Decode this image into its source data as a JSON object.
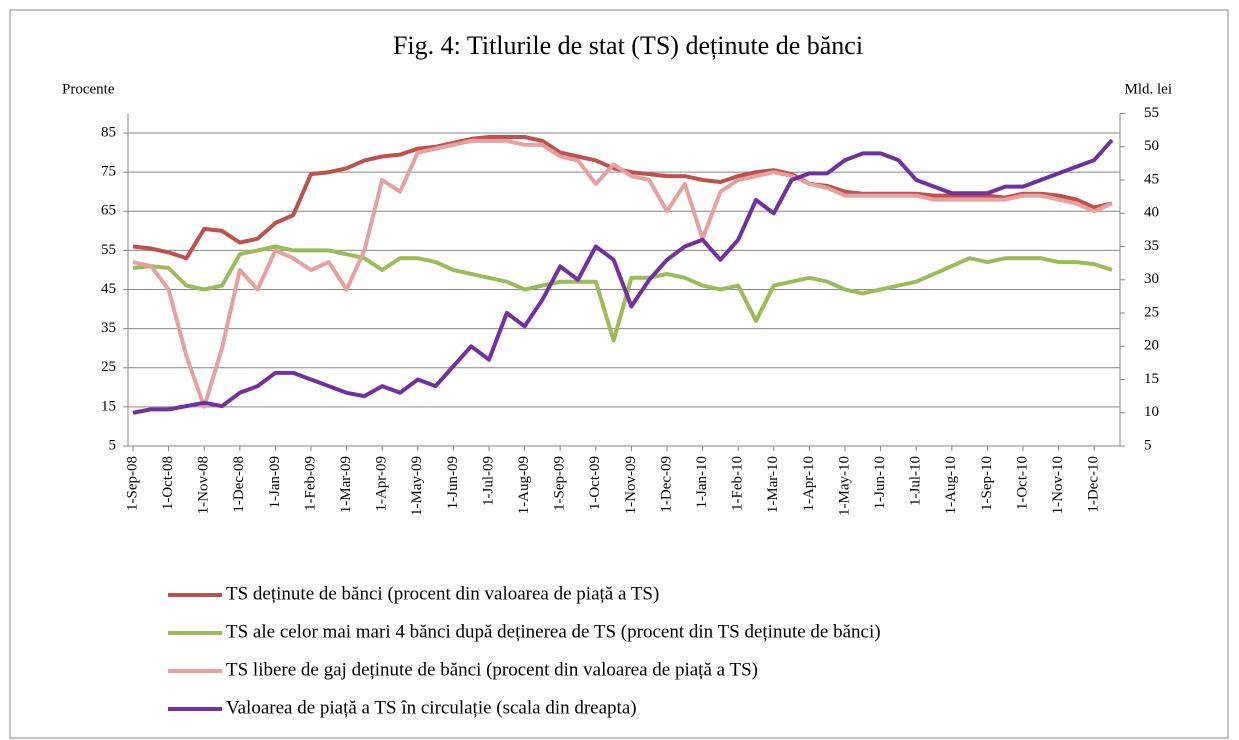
{
  "chart_data": {
    "type": "line",
    "title": "Fig. 4: Titlurile de stat (TS) deținute de bănci",
    "y_label": "Procente",
    "y2_label": "Mld. lei",
    "categories": [
      "1-Sep-08",
      null,
      "1-Oct-08",
      null,
      "1-Nov-08",
      null,
      "1-Dec-08",
      null,
      "1-Jan-09",
      null,
      "1-Feb-09",
      null,
      "1-Mar-09",
      null,
      "1-Apr-09",
      null,
      "1-May-09",
      null,
      "1-Jun-09",
      null,
      "1-Jul-09",
      null,
      "1-Aug-09",
      null,
      "1-Sep-09",
      null,
      "1-Oct-09",
      null,
      "1-Nov-09",
      null,
      "1-Dec-09",
      null,
      "1-Jan-10",
      null,
      "1-Feb-10",
      null,
      "1-Mar-10",
      null,
      "1-Apr-10",
      null,
      "1-May-10",
      null,
      "1-Jun-10",
      null,
      "1-Jul-10",
      null,
      "1-Aug-10",
      null,
      "1-Sep-10",
      null,
      "1-Oct-10",
      null,
      "1-Nov-10",
      null,
      "1-Dec-10",
      null
    ],
    "ylim": [
      5,
      90
    ],
    "yticks": [
      5,
      15,
      25,
      35,
      45,
      55,
      65,
      75,
      85
    ],
    "y2lim": [
      5,
      55
    ],
    "y2ticks": [
      5,
      10,
      15,
      20,
      25,
      30,
      35,
      40,
      45,
      50,
      55
    ],
    "grid": true,
    "series": [
      {
        "name": "TS deținute de bănci (procent din valoarea de piață a TS)",
        "color": "#c0504d",
        "values": [
          56,
          55.5,
          54.5,
          53,
          60.5,
          60,
          57,
          58,
          62,
          64,
          74.5,
          75,
          76,
          78,
          79,
          79.5,
          81,
          81.5,
          82.5,
          83.5,
          84,
          84,
          84,
          83,
          80,
          79,
          78,
          76,
          75,
          74.5,
          74,
          74,
          73,
          72.5,
          74,
          75,
          75.5,
          74.5,
          72,
          71.5,
          70,
          69.5,
          69.5,
          69.5,
          69.5,
          69,
          69,
          69,
          69,
          68.5,
          69.5,
          69.5,
          69,
          68,
          66,
          67
        ]
      },
      {
        "name": "TS ale celor mai mari 4 bănci după deținerea de TS (procent din TS deținute de bănci)",
        "color": "#9bbb59",
        "values": [
          50.5,
          51,
          50.5,
          46,
          45,
          46,
          54,
          55,
          56,
          55,
          55,
          55,
          54,
          53,
          50,
          53,
          53,
          52,
          50,
          49,
          48,
          47,
          45,
          46,
          47,
          47,
          47,
          32,
          48,
          48,
          49,
          48,
          46,
          45,
          46,
          37,
          46,
          47,
          48,
          47,
          45,
          44,
          45,
          46,
          47,
          49,
          51,
          53,
          52,
          53,
          53,
          53,
          52,
          52,
          51.5,
          50
        ]
      },
      {
        "name": "TS libere de gaj deținute de bănci (procent din valoarea de piață a TS)",
        "color": "#e6a09e",
        "values": [
          52,
          51,
          45,
          28,
          15,
          30,
          50,
          45,
          55,
          53,
          50,
          52,
          45,
          55,
          73,
          70,
          80,
          81,
          82,
          83,
          83,
          83,
          82,
          82,
          79,
          78,
          72,
          77,
          74,
          73,
          65,
          72,
          58,
          70,
          73,
          74,
          75,
          74,
          72,
          71,
          69,
          69,
          69,
          69,
          69,
          68,
          68,
          68,
          68,
          68,
          69,
          69,
          68,
          67,
          65,
          67
        ]
      },
      {
        "name": "Valoarea de piață a TS în circulație (scala din dreapta)",
        "color": "#7030a0",
        "axis": "y2",
        "values": [
          10,
          10.5,
          10.5,
          11,
          11.5,
          11,
          13,
          14,
          16,
          16,
          15,
          14,
          13,
          12.5,
          14,
          13,
          15,
          14,
          17,
          20,
          18,
          25,
          23,
          27,
          32,
          30,
          35,
          33,
          26,
          30,
          33,
          35,
          36,
          33,
          36,
          42,
          40,
          45,
          46,
          46,
          48,
          49,
          49,
          48,
          45,
          44,
          43,
          43,
          43,
          44,
          44,
          45,
          46,
          47,
          48,
          51
        ]
      }
    ]
  }
}
